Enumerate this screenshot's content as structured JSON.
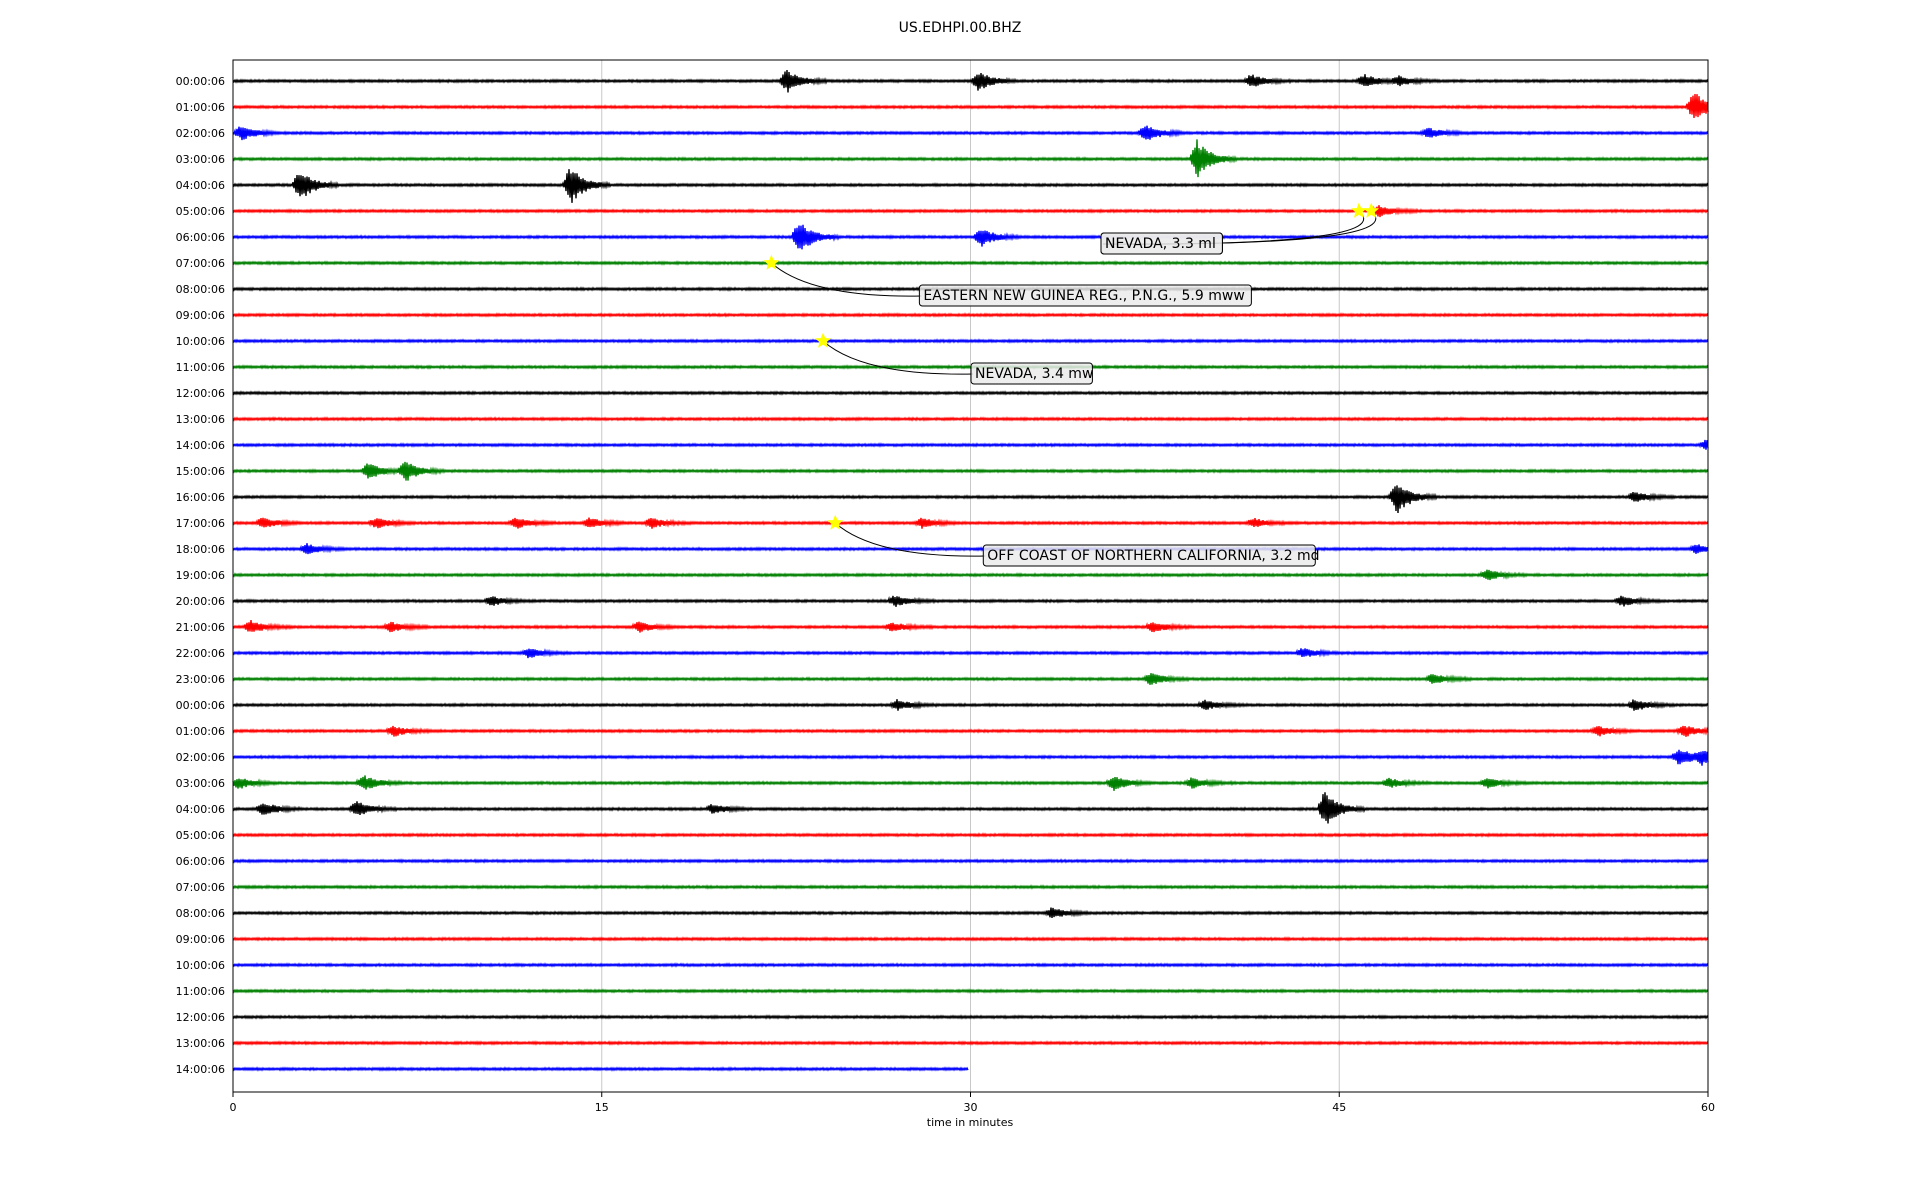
{
  "chart_data": {
    "type": "line",
    "title": "US.EDHPI.00.BHZ",
    "xlabel": "time in minutes",
    "ylabel": "",
    "xlim": [
      0,
      60
    ],
    "x_ticks": [
      0,
      15,
      30,
      45,
      60
    ],
    "grid": "vertical",
    "trace_colors": [
      "#000000",
      "#ff0000",
      "#0000ff",
      "#008000"
    ],
    "rows": [
      {
        "label": "00:00:06",
        "end_minute": 60,
        "bursts": [
          [
            22.5,
            3.5
          ],
          [
            30.3,
            3.2
          ],
          [
            41.4,
            2.0
          ],
          [
            46.0,
            2.0
          ],
          [
            47.4,
            1.4
          ]
        ]
      },
      {
        "label": "01:00:06",
        "end_minute": 60,
        "bursts": [
          [
            59.4,
            5.0
          ]
        ]
      },
      {
        "label": "02:00:06",
        "end_minute": 60,
        "bursts": [
          [
            0.3,
            2.2
          ],
          [
            37.1,
            2.8
          ],
          [
            48.6,
            1.6
          ]
        ]
      },
      {
        "label": "03:00:06",
        "end_minute": 60,
        "bursts": [
          [
            39.2,
            6.0
          ]
        ]
      },
      {
        "label": "04:00:06",
        "end_minute": 60,
        "bursts": [
          [
            2.7,
            5.0
          ],
          [
            13.7,
            6.0
          ]
        ]
      },
      {
        "label": "05:00:06",
        "end_minute": 60,
        "bursts": [
          [
            46.6,
            1.8
          ]
        ]
      },
      {
        "label": "06:00:06",
        "end_minute": 60,
        "bursts": [
          [
            23.0,
            5.5
          ],
          [
            30.4,
            3.0
          ]
        ]
      },
      {
        "label": "07:00:06",
        "end_minute": 60,
        "bursts": []
      },
      {
        "label": "08:00:06",
        "end_minute": 60,
        "bursts": []
      },
      {
        "label": "09:00:06",
        "end_minute": 60,
        "bursts": []
      },
      {
        "label": "10:00:06",
        "end_minute": 60,
        "bursts": []
      },
      {
        "label": "11:00:06",
        "end_minute": 60,
        "bursts": []
      },
      {
        "label": "12:00:06",
        "end_minute": 60,
        "bursts": []
      },
      {
        "label": "13:00:06",
        "end_minute": 60,
        "bursts": []
      },
      {
        "label": "14:00:06",
        "end_minute": 60,
        "bursts": [
          [
            59.9,
            1.5
          ]
        ]
      },
      {
        "label": "15:00:06",
        "end_minute": 60,
        "bursts": [
          [
            5.5,
            2.5
          ],
          [
            7.0,
            3.2
          ]
        ]
      },
      {
        "label": "16:00:06",
        "end_minute": 60,
        "bursts": [
          [
            47.3,
            5.5
          ],
          [
            57.0,
            1.6
          ]
        ]
      },
      {
        "label": "17:00:06",
        "end_minute": 60,
        "bursts": [
          [
            1.2,
            1.8
          ],
          [
            5.8,
            1.6
          ],
          [
            11.5,
            1.6
          ],
          [
            14.5,
            1.6
          ],
          [
            17.0,
            1.5
          ],
          [
            28.0,
            1.5
          ],
          [
            41.5,
            1.4
          ]
        ]
      },
      {
        "label": "18:00:06",
        "end_minute": 60,
        "bursts": [
          [
            3.0,
            1.6
          ],
          [
            59.5,
            1.4
          ]
        ]
      },
      {
        "label": "19:00:06",
        "end_minute": 60,
        "bursts": [
          [
            51.0,
            1.6
          ]
        ]
      },
      {
        "label": "20:00:06",
        "end_minute": 60,
        "bursts": [
          [
            10.5,
            1.4
          ],
          [
            26.9,
            1.6
          ],
          [
            56.5,
            1.6
          ]
        ]
      },
      {
        "label": "21:00:06",
        "end_minute": 60,
        "bursts": [
          [
            0.7,
            2.0
          ],
          [
            6.4,
            1.6
          ],
          [
            16.5,
            1.5
          ],
          [
            26.8,
            1.4
          ],
          [
            37.4,
            1.6
          ]
        ]
      },
      {
        "label": "22:00:06",
        "end_minute": 60,
        "bursts": [
          [
            12.0,
            1.5
          ],
          [
            43.5,
            1.4
          ]
        ]
      },
      {
        "label": "23:00:06",
        "end_minute": 60,
        "bursts": [
          [
            37.3,
            1.8
          ],
          [
            48.8,
            1.6
          ]
        ]
      },
      {
        "label": "00:00:06",
        "end_minute": 60,
        "bursts": [
          [
            27.0,
            1.5
          ],
          [
            39.5,
            1.4
          ],
          [
            57.0,
            1.8
          ]
        ]
      },
      {
        "label": "01:00:06",
        "end_minute": 60,
        "bursts": [
          [
            6.5,
            1.6
          ],
          [
            55.5,
            1.6
          ],
          [
            59.0,
            1.8
          ]
        ]
      },
      {
        "label": "02:00:06",
        "end_minute": 60,
        "bursts": [
          [
            58.8,
            2.8
          ],
          [
            59.7,
            2.0
          ]
        ]
      },
      {
        "label": "03:00:06",
        "end_minute": 60,
        "bursts": [
          [
            0.2,
            1.8
          ],
          [
            5.3,
            2.4
          ],
          [
            35.8,
            2.2
          ],
          [
            39.0,
            1.6
          ],
          [
            47.0,
            1.5
          ],
          [
            51.0,
            1.5
          ]
        ]
      },
      {
        "label": "04:00:06",
        "end_minute": 60,
        "bursts": [
          [
            1.2,
            2.2
          ],
          [
            5.0,
            2.4
          ],
          [
            19.5,
            1.5
          ],
          [
            44.4,
            5.5
          ]
        ]
      },
      {
        "label": "05:00:06",
        "end_minute": 60,
        "bursts": []
      },
      {
        "label": "06:00:06",
        "end_minute": 60,
        "bursts": []
      },
      {
        "label": "07:00:06",
        "end_minute": 60,
        "bursts": []
      },
      {
        "label": "08:00:06",
        "end_minute": 60,
        "bursts": [
          [
            33.3,
            1.6
          ]
        ]
      },
      {
        "label": "09:00:06",
        "end_minute": 60,
        "bursts": []
      },
      {
        "label": "10:00:06",
        "end_minute": 60,
        "bursts": []
      },
      {
        "label": "11:00:06",
        "end_minute": 60,
        "bursts": []
      },
      {
        "label": "12:00:06",
        "end_minute": 60,
        "bursts": []
      },
      {
        "label": "13:00:06",
        "end_minute": 60,
        "bursts": []
      },
      {
        "label": "14:00:06",
        "end_minute": 29.9,
        "bursts": []
      }
    ],
    "events": [
      {
        "text": "NEVADA, 3.3 ml",
        "row": 5,
        "minute": 45.8
      },
      {
        "text": "NEVADA, 3.3 ml",
        "row": 5,
        "minute": 46.3
      },
      {
        "text": "EASTERN NEW GUINEA REG., P.N.G., 5.9 mww",
        "row": 7,
        "minute": 21.9
      },
      {
        "text": "NEVADA, 3.4 mw",
        "row": 10,
        "minute": 24.0
      },
      {
        "text": "OFF COAST OF NORTHERN CALIFORNIA, 3.2 md",
        "row": 17,
        "minute": 24.5
      }
    ]
  }
}
